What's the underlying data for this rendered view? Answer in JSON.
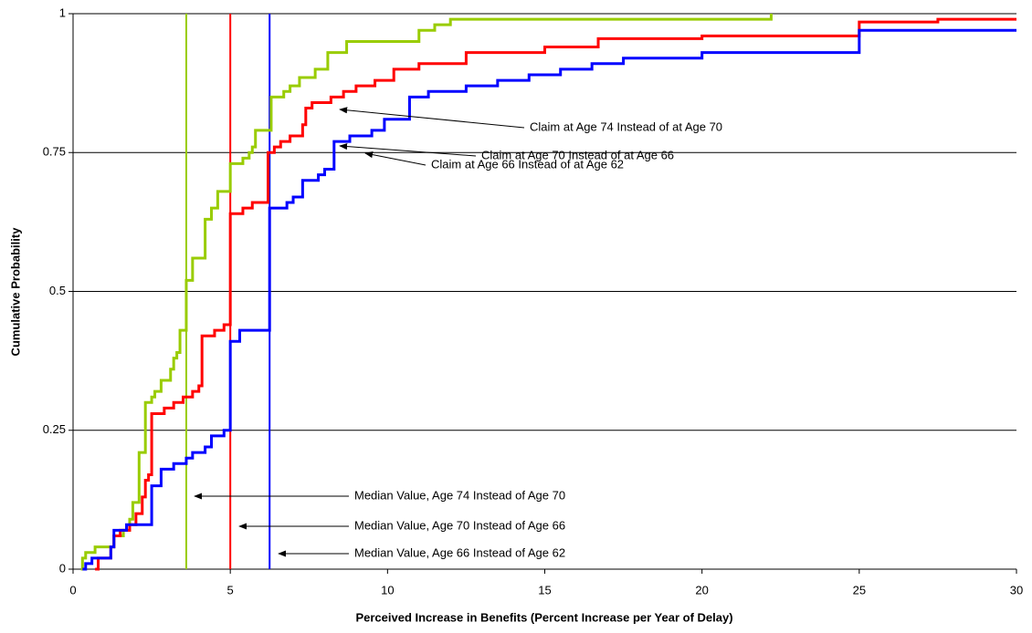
{
  "chart_data": {
    "type": "step",
    "x_label": "Perceived Increase in Benefits (Percent Increase per Year of Delay)",
    "y_label": "Cumulative Probability",
    "xlim": [
      0,
      30
    ],
    "xticks": [
      0,
      5,
      10,
      15,
      20,
      25,
      30
    ],
    "ylim": [
      0,
      1
    ],
    "yticks": [
      0,
      0.25,
      0.5,
      0.75,
      1
    ],
    "grid": true,
    "series": [
      {
        "color": "#99cc00",
        "x": [
          0.25,
          0.3,
          0.4,
          0.7,
          1.3,
          1.6,
          1.8,
          1.9,
          2.1,
          2.3,
          2.5,
          2.6,
          2.8,
          3.1,
          3.2,
          3.3,
          3.4,
          3.6,
          3.8,
          4.2,
          4.4,
          4.6,
          5.0,
          5.4,
          5.6,
          5.7,
          5.8,
          6.3,
          6.7,
          6.9,
          7.2,
          7.7,
          8.1,
          8.7,
          11,
          11.5,
          12,
          22.2
        ],
        "values": [
          0,
          0.02,
          0.03,
          0.04,
          0.06,
          0.07,
          0.09,
          0.12,
          0.21,
          0.3,
          0.31,
          0.32,
          0.34,
          0.36,
          0.38,
          0.39,
          0.43,
          0.52,
          0.56,
          0.63,
          0.65,
          0.68,
          0.73,
          0.74,
          0.75,
          0.76,
          0.79,
          0.85,
          0.86,
          0.87,
          0.885,
          0.9,
          0.93,
          0.95,
          0.97,
          0.98,
          0.99,
          1
        ]
      },
      {
        "color": "#ff0000",
        "x": [
          0.7,
          0.8,
          1.2,
          1.3,
          1.5,
          1.8,
          2.0,
          2.2,
          2.3,
          2.4,
          2.5,
          2.9,
          3.2,
          3.5,
          3.8,
          4.0,
          4.1,
          4.5,
          4.8,
          5.0,
          5.4,
          5.7,
          6.2,
          6.4,
          6.6,
          6.9,
          7.3,
          7.4,
          7.6,
          8.2,
          8.6,
          9.0,
          9.6,
          10.2,
          11,
          12.5,
          15,
          16.7,
          20,
          25,
          27.5,
          30
        ],
        "values": [
          0,
          0.02,
          0.04,
          0.06,
          0.07,
          0.08,
          0.1,
          0.13,
          0.16,
          0.17,
          0.28,
          0.29,
          0.3,
          0.31,
          0.32,
          0.33,
          0.42,
          0.43,
          0.44,
          0.64,
          0.65,
          0.66,
          0.75,
          0.76,
          0.77,
          0.78,
          0.8,
          0.83,
          0.84,
          0.85,
          0.86,
          0.87,
          0.88,
          0.9,
          0.91,
          0.93,
          0.94,
          0.955,
          0.96,
          0.985,
          0.99,
          0.99
        ]
      },
      {
        "color": "#0000ff",
        "x": [
          0.3,
          0.4,
          0.6,
          1.2,
          1.3,
          1.7,
          2.5,
          2.8,
          3.2,
          3.6,
          3.8,
          4.2,
          4.4,
          4.8,
          5.0,
          5.3,
          6.25,
          6.8,
          7.0,
          7.3,
          7.8,
          8.0,
          8.3,
          8.8,
          9.5,
          9.9,
          10.7,
          11.3,
          12.5,
          13.5,
          14.5,
          15.5,
          16.5,
          17.5,
          20,
          25,
          30
        ],
        "values": [
          0,
          0.01,
          0.02,
          0.04,
          0.07,
          0.08,
          0.15,
          0.18,
          0.19,
          0.2,
          0.21,
          0.22,
          0.24,
          0.25,
          0.41,
          0.43,
          0.65,
          0.66,
          0.67,
          0.7,
          0.71,
          0.72,
          0.77,
          0.78,
          0.79,
          0.81,
          0.85,
          0.86,
          0.87,
          0.88,
          0.89,
          0.9,
          0.91,
          0.92,
          0.93,
          0.97,
          0.97
        ]
      }
    ],
    "median_lines": [
      {
        "value": 3.6,
        "color": "#99cc00"
      },
      {
        "value": 5.0,
        "color": "#ff0000"
      },
      {
        "value": 6.25,
        "color": "#0000ff"
      }
    ],
    "annotations": [
      "Claim at Age 74 Instead of at Age 70",
      "Claim at Age 70 Instead of at Age 66",
      "Claim at Age 66 Instead of at Age 62",
      "Median Value, Age 74 Instead of Age 70",
      "Median Value, Age 70 Instead of Age 66",
      "Median Value, Age 66 Instead of Age 62"
    ]
  }
}
